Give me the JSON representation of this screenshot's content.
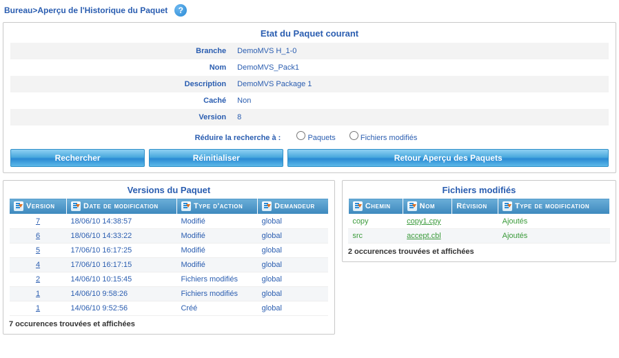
{
  "breadcrumb": {
    "root": "Bureau",
    "sep": ">",
    "page": "Aperçu de l'Historique du Paquet"
  },
  "status_panel": {
    "title": "Etat du Paquet courant",
    "rows": [
      {
        "label": "Branche",
        "value": "DemoMVS H_1-0"
      },
      {
        "label": "Nom",
        "value": "DemoMVS_Pack1"
      },
      {
        "label": "Description",
        "value": "DemoMVS Package 1"
      },
      {
        "label": "Caché",
        "value": "Non"
      },
      {
        "label": "Version",
        "value": "8"
      }
    ],
    "filter_label": "Réduire la recherche à :",
    "filter_opts": [
      {
        "label": "Paquets"
      },
      {
        "label": "Fichiers modifiés"
      }
    ],
    "buttons": {
      "search": "Rechercher",
      "reset": "Réinitialiser",
      "back": "Retour Aperçu des Paquets"
    }
  },
  "versions": {
    "title": "Versions du Paquet",
    "columns": [
      "Version",
      "Date de modification",
      "Type d'action",
      "Demandeur"
    ],
    "rows": [
      {
        "v": "7",
        "date": "18/06/10 14:38:57",
        "action": "Modifié",
        "req": "global"
      },
      {
        "v": "6",
        "date": "18/06/10 14:33:22",
        "action": "Modifié",
        "req": "global"
      },
      {
        "v": "5",
        "date": "17/06/10 16:17:25",
        "action": "Modifié",
        "req": "global"
      },
      {
        "v": "4",
        "date": "17/06/10 16:17:15",
        "action": "Modifié",
        "req": "global"
      },
      {
        "v": "2",
        "date": "14/06/10 10:15:45",
        "action": "Fichiers modifiés",
        "req": "global"
      },
      {
        "v": "1",
        "date": "14/06/10 9:58:26",
        "action": "Fichiers modifiés",
        "req": "global"
      },
      {
        "v": "1",
        "date": "14/06/10 9:52:56",
        "action": "Créé",
        "req": "global"
      }
    ],
    "footer": "7 occurences trouvées et affichées"
  },
  "files": {
    "title": "Fichiers modifiés",
    "columns": [
      "Chemin",
      "Nom",
      "Révision",
      "Type de modification"
    ],
    "rows": [
      {
        "path": "copy",
        "name": "copy1.cpy",
        "rev": "",
        "type": "Ajoutés"
      },
      {
        "path": "src",
        "name": "accept.cbl",
        "rev": "",
        "type": "Ajoutés"
      }
    ],
    "footer": "2 occurences trouvées et affichées"
  }
}
